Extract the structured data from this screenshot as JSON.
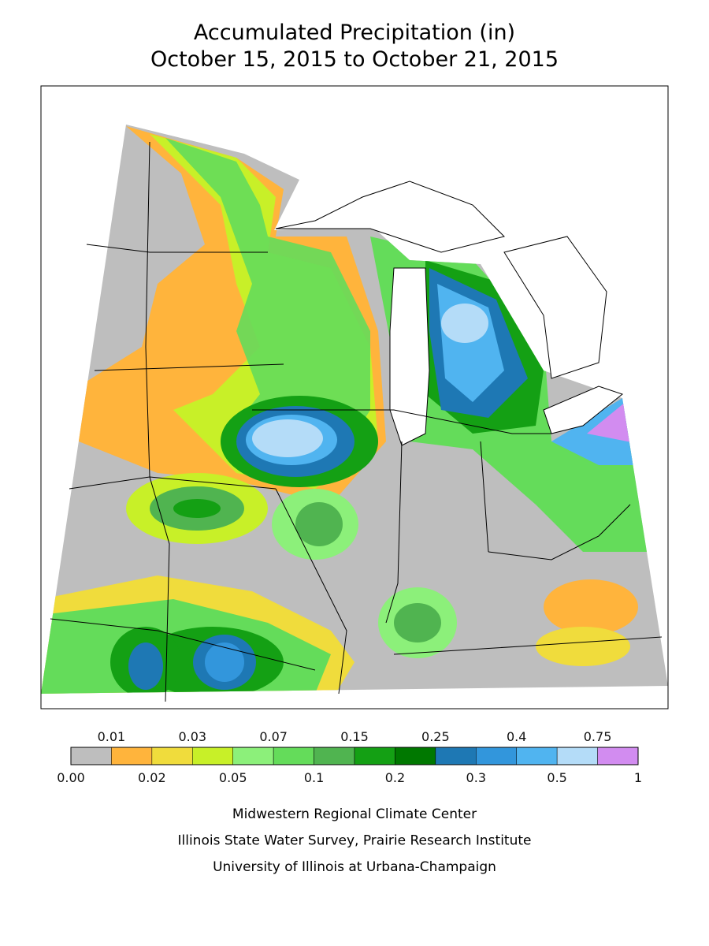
{
  "header": {
    "title": "Accumulated Precipitation (in)",
    "subtitle": "October 15, 2015 to October 21, 2015"
  },
  "legend": {
    "labels": [
      "0.00",
      "0.01",
      "0.02",
      "0.03",
      "0.05",
      "0.07",
      "0.1",
      "0.15",
      "0.2",
      "0.25",
      "0.3",
      "0.4",
      "0.5",
      "0.75",
      "1"
    ],
    "colors": [
      "#bebebe",
      "#ffb43c",
      "#f0dc3c",
      "#c8f028",
      "#8cf07a",
      "#64dc5a",
      "#50b450",
      "#14a014",
      "#007800",
      "#1e78b4",
      "#3296dc",
      "#50b4f0",
      "#b4dcf8",
      "#d28cf0"
    ]
  },
  "credits": [
    "Midwestern Regional Climate Center",
    "Illinois State Water Survey, Prairie Research Institute",
    "University of Illinois at Urbana-Champaign"
  ]
}
